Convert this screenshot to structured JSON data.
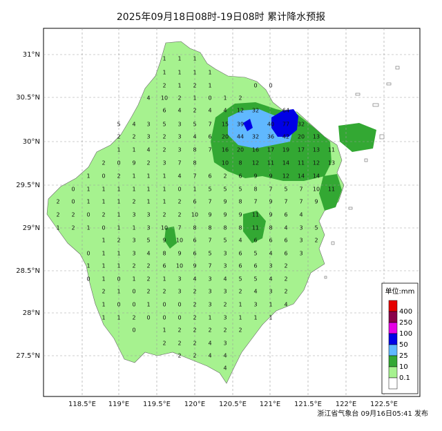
{
  "title": "2025年09月18日08时-19日08时 累计降水预报",
  "footer": "浙江省气象台 09月16日05:41 发布",
  "lat_labels": [
    "31°N",
    "30.5°N",
    "30°N",
    "29.5°N",
    "29°N",
    "28.5°N",
    "28°N",
    "27.5°N"
  ],
  "lon_labels": [
    "118.5°E",
    "119°E",
    "119.5°E",
    "120°E",
    "120.5°E",
    "121°E",
    "121.5°E",
    "122°E",
    "122.5°E"
  ],
  "legend": {
    "title": "单位:mm",
    "items": [
      {
        "label": "400",
        "color": "#e60000"
      },
      {
        "label": "250",
        "color": "#8a004a"
      },
      {
        "label": "100",
        "color": "#e600e6"
      },
      {
        "label": "50",
        "color": "#0000e6"
      },
      {
        "label": "25",
        "color": "#60b8ff"
      },
      {
        "label": "10",
        "color": "#33a833"
      },
      {
        "label": "0.1",
        "color": "#a6f28f"
      }
    ]
  },
  "grid_values": [
    [
      [
        0,
        1
      ],
      [
        0,
        0
      ],
      [
        0,
        0
      ]
    ],
    [
      [
        1,
        1,
        1,
        1,
        1,
        0
      ],
      [
        1,
        1,
        1,
        1,
        1,
        0
      ]
    ]
  ]
}
